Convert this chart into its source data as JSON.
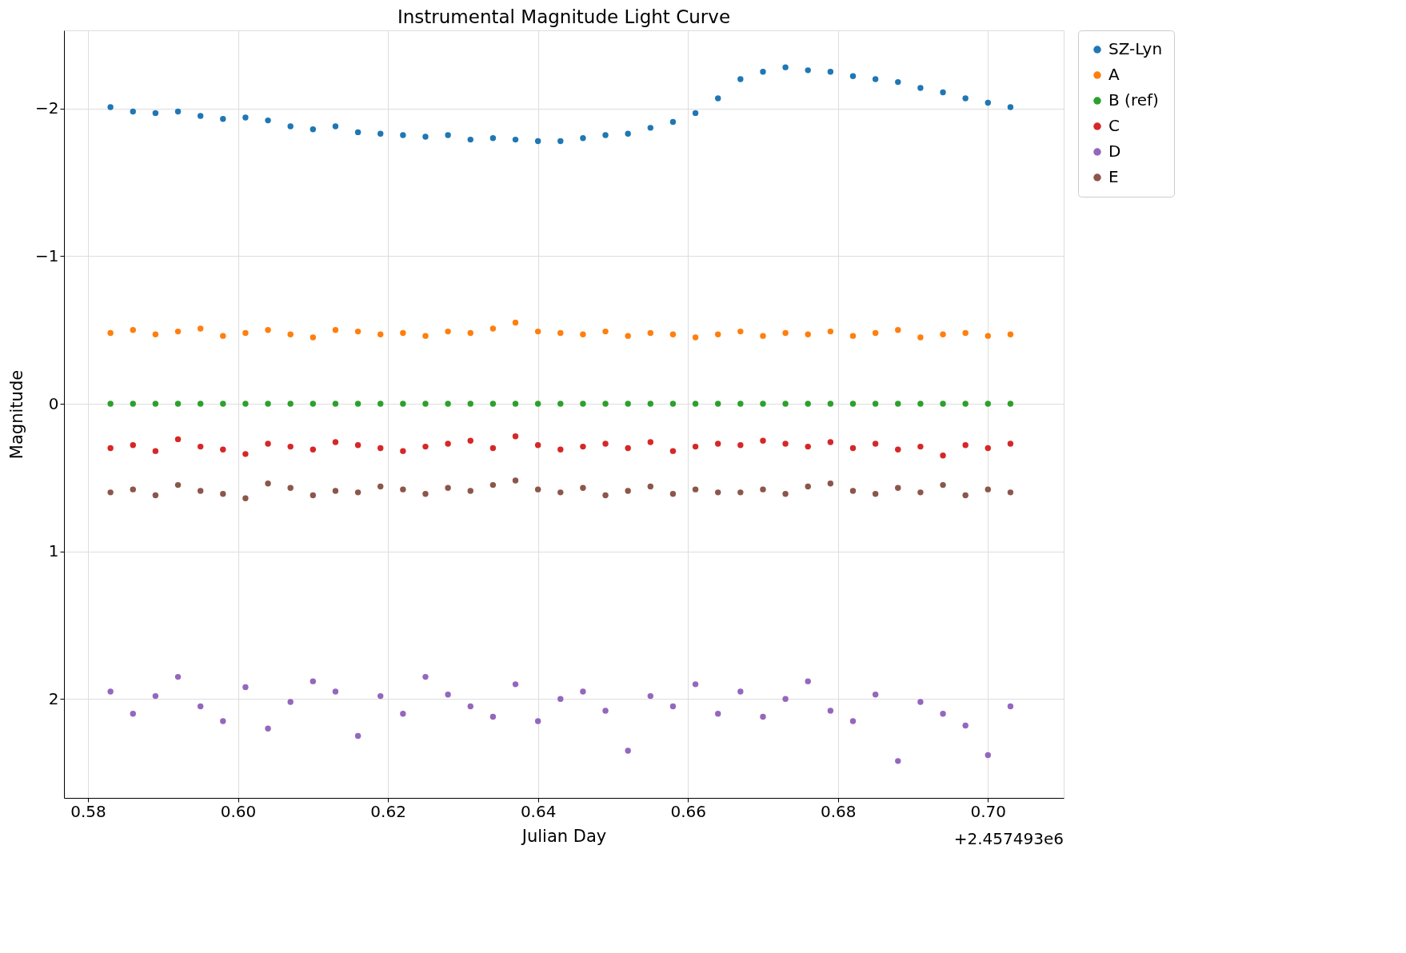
{
  "chart_data": {
    "type": "scatter",
    "title": "Instrumental Magnitude Light Curve",
    "xlabel": "Julian Day",
    "ylabel": "Magnitude",
    "annotations": [
      "+2.457493e6"
    ],
    "x": [
      0.583,
      0.586,
      0.589,
      0.592,
      0.595,
      0.598,
      0.601,
      0.604,
      0.607,
      0.61,
      0.613,
      0.616,
      0.619,
      0.622,
      0.625,
      0.628,
      0.631,
      0.634,
      0.637,
      0.64,
      0.643,
      0.646,
      0.649,
      0.652,
      0.655,
      0.658,
      0.661,
      0.664,
      0.667,
      0.67,
      0.673,
      0.676,
      0.679,
      0.682,
      0.685,
      0.688,
      0.691,
      0.694,
      0.697,
      0.7,
      0.703
    ],
    "series": [
      {
        "name": "SZ-Lyn",
        "color": "#1f77b4",
        "values": [
          -2.01,
          -1.98,
          -1.97,
          -1.98,
          -1.95,
          -1.93,
          -1.94,
          -1.92,
          -1.88,
          -1.86,
          -1.88,
          -1.84,
          -1.83,
          -1.82,
          -1.81,
          -1.82,
          -1.79,
          -1.8,
          -1.79,
          -1.78,
          -1.78,
          -1.8,
          -1.82,
          -1.83,
          -1.87,
          -1.91,
          -1.97,
          -2.07,
          -2.2,
          -2.25,
          -2.28,
          -2.26,
          -2.25,
          -2.22,
          -2.2,
          -2.18,
          -2.14,
          -2.11,
          -2.07,
          -2.04,
          -2.01
        ]
      },
      {
        "name": "A",
        "color": "#ff7f0e",
        "values": [
          -0.48,
          -0.5,
          -0.47,
          -0.49,
          -0.51,
          -0.46,
          -0.48,
          -0.5,
          -0.47,
          -0.45,
          -0.5,
          -0.49,
          -0.47,
          -0.48,
          -0.46,
          -0.49,
          -0.48,
          -0.51,
          -0.55,
          -0.49,
          -0.48,
          -0.47,
          -0.49,
          -0.46,
          -0.48,
          -0.47,
          -0.45,
          -0.47,
          -0.49,
          -0.46,
          -0.48,
          -0.47,
          -0.49,
          -0.46,
          -0.48,
          -0.5,
          -0.45,
          -0.47,
          -0.48,
          -0.46,
          -0.47
        ]
      },
      {
        "name": "B (ref)",
        "color": "#2ca02c",
        "values": [
          0,
          0,
          0,
          0,
          0,
          0,
          0,
          0,
          0,
          0,
          0,
          0,
          0,
          0,
          0,
          0,
          0,
          0,
          0,
          0,
          0,
          0,
          0,
          0,
          0,
          0,
          0,
          0,
          0,
          0,
          0,
          0,
          0,
          0,
          0,
          0,
          0,
          0,
          0,
          0,
          0
        ]
      },
      {
        "name": "C",
        "color": "#d62728",
        "values": [
          0.3,
          0.28,
          0.32,
          0.24,
          0.29,
          0.31,
          0.34,
          0.27,
          0.29,
          0.31,
          0.26,
          0.28,
          0.3,
          0.32,
          0.29,
          0.27,
          0.25,
          0.3,
          0.22,
          0.28,
          0.31,
          0.29,
          0.27,
          0.3,
          0.26,
          0.32,
          0.29,
          0.27,
          0.28,
          0.25,
          0.27,
          0.29,
          0.26,
          0.3,
          0.27,
          0.31,
          0.29,
          0.35,
          0.28,
          0.3,
          0.27
        ]
      },
      {
        "name": "D",
        "color": "#9467bd",
        "values": [
          1.95,
          2.1,
          1.98,
          1.85,
          2.05,
          2.15,
          1.92,
          2.2,
          2.02,
          1.88,
          1.95,
          2.25,
          1.98,
          2.1,
          1.85,
          1.97,
          2.05,
          2.12,
          1.9,
          2.15,
          2.0,
          1.95,
          2.08,
          2.35,
          1.98,
          2.05,
          1.9,
          2.1,
          1.95,
          2.12,
          2.0,
          1.88,
          2.08,
          2.15,
          1.97,
          2.42,
          2.02,
          2.1,
          2.18,
          2.38,
          2.05
        ]
      },
      {
        "name": "E",
        "color": "#8c564b",
        "values": [
          0.6,
          0.58,
          0.62,
          0.55,
          0.59,
          0.61,
          0.64,
          0.54,
          0.57,
          0.62,
          0.59,
          0.6,
          0.56,
          0.58,
          0.61,
          0.57,
          0.59,
          0.55,
          0.52,
          0.58,
          0.6,
          0.57,
          0.62,
          0.59,
          0.56,
          0.61,
          0.58,
          0.6,
          0.6,
          0.58,
          0.61,
          0.56,
          0.54,
          0.59,
          0.61,
          0.57,
          0.6,
          0.55,
          0.62,
          0.58,
          0.6
        ]
      }
    ],
    "xlim": [
      0.5768,
      0.7101
    ],
    "xticks": [
      0.58,
      {
        "value": 0.6,
        "label": "0.60"
      },
      0.62,
      0.64,
      0.66,
      0.68,
      {
        "value": 0.7,
        "label": "0.70"
      }
    ],
    "ylim": [
      2.67,
      -2.53
    ],
    "yticks": [
      {
        "value": -2,
        "label": "−2"
      },
      {
        "value": -1,
        "label": "−1"
      },
      0,
      1,
      2
    ],
    "grid": true,
    "legend": "right",
    "marker": "circle"
  }
}
